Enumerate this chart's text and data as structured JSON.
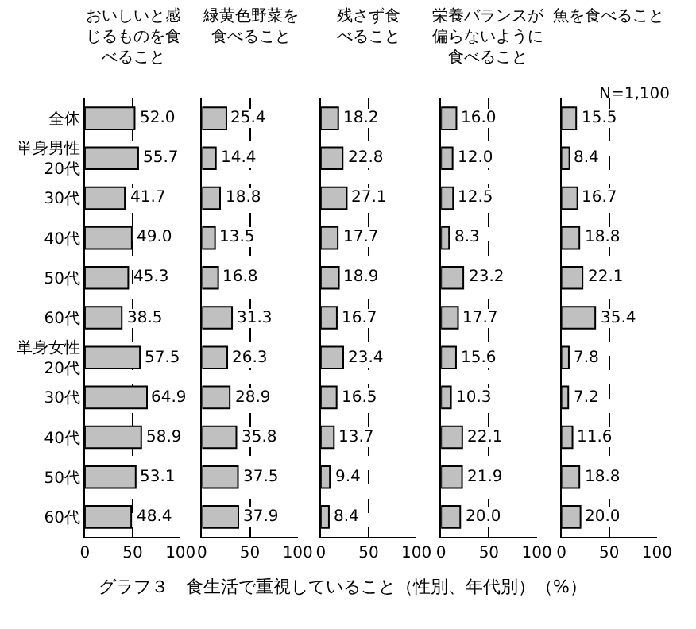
{
  "chart_data": [
    {
      "type": "bar",
      "orientation": "horizontal",
      "title": "おいしいと感じるものを食べること",
      "categories": [
        "全体",
        "単身男性\n20代",
        "30代",
        "40代",
        "50代",
        "60代",
        "単身女性\n20代",
        "30代",
        "40代",
        "50代",
        "60代"
      ],
      "values": [
        52.0,
        55.7,
        41.7,
        49.0,
        45.3,
        38.5,
        57.5,
        64.9,
        58.9,
        53.1,
        48.4
      ],
      "value_labels": [
        "52.0",
        "55.7",
        "41.7",
        "49.0",
        "45.3",
        "38.5",
        "57.5",
        "64.9",
        "58.9",
        "53.1",
        "48.4"
      ],
      "color": "#c0c0c0",
      "xlim": [
        0,
        100
      ],
      "xticks": [
        0,
        50,
        100
      ],
      "grid": "x",
      "line_style": "dashed",
      "annotations": [
        "グラフ３　食生活で重視していること（性別、年代別）（%）"
      ]
    },
    {
      "type": "bar",
      "orientation": "horizontal",
      "title": "緑黄色野菜を食べること",
      "categories": [
        "全体",
        "単身男性\n20代",
        "30代",
        "40代",
        "50代",
        "60代",
        "単身女性\n20代",
        "30代",
        "40代",
        "50代",
        "60代"
      ],
      "values": [
        25.4,
        14.4,
        18.8,
        13.5,
        16.8,
        31.3,
        26.3,
        28.9,
        35.8,
        37.5,
        37.9
      ],
      "color": "#c0c0c0",
      "xlim": [
        0,
        100
      ],
      "xticks": [
        0,
        50,
        100
      ],
      "grid": "x",
      "line_style": "dashed",
      "data_labels": true,
      "tick_labels": "x"
    },
    {
      "type": "bar",
      "orientation": "horizontal",
      "title": "残さず食べること",
      "categories": [
        "全体",
        "単身男性\n20代",
        "30代",
        "40代",
        "50代",
        "60代",
        "単身女性\n20代",
        "30代",
        "40代",
        "50代",
        "60代"
      ],
      "values": [
        18.2,
        22.8,
        27.1,
        17.7,
        18.9,
        16.7,
        23.4,
        16.5,
        13.7,
        9.4,
        8.4
      ],
      "color": "#c0c0c0",
      "xlim": [
        0,
        100
      ],
      "xticks": [
        0,
        50,
        100
      ],
      "grid": "x",
      "line_style": "dashed",
      "data_labels": true,
      "tick_labels": "x"
    },
    {
      "type": "bar",
      "orientation": "horizontal",
      "title": "栄養バランスが偏らないように食べること",
      "categories": [
        "全体",
        "単身男性\n20代",
        "30代",
        "40代",
        "50代",
        "60代",
        "単身女性\n20代",
        "30代",
        "40代",
        "50代",
        "60代"
      ],
      "values": [
        16.0,
        12.0,
        12.5,
        8.3,
        23.2,
        17.7,
        15.6,
        10.3,
        22.1,
        21.9,
        20.0
      ],
      "value_labels": [
        "16.0",
        "12.0",
        "12.5",
        "8.3",
        "23.2",
        "17.7",
        "15.6",
        "10.3",
        "22.1",
        "21.9",
        "20.0"
      ],
      "color": "#c0c0c0",
      "xlim": [
        0,
        100
      ],
      "xticks": [
        0,
        50,
        100
      ],
      "grid": "x",
      "line_style": "dashed",
      "tick_labels": "x"
    },
    {
      "type": "bar",
      "orientation": "horizontal",
      "title": "魚を食べること",
      "categories": [
        "全体",
        "単身男性\n20代",
        "30代",
        "40代",
        "50代",
        "60代",
        "単身女性\n20代",
        "30代",
        "40代",
        "50代",
        "60代"
      ],
      "values": [
        15.5,
        8.4,
        16.7,
        18.8,
        22.1,
        35.4,
        7.8,
        7.2,
        11.6,
        18.8,
        20.0
      ],
      "value_labels": [
        "15.5",
        "8.4",
        "16.7",
        "18.8",
        "22.1",
        "35.4",
        "7.8",
        "7.2",
        "11.6",
        "18.8",
        "20.0"
      ],
      "color": "#c0c0c0",
      "xlim": [
        0,
        100
      ],
      "xticks": [
        0,
        50,
        100
      ],
      "grid": "x",
      "line_style": "dashed",
      "tick_labels": "x",
      "annotations": [
        "N=1,100"
      ]
    }
  ]
}
